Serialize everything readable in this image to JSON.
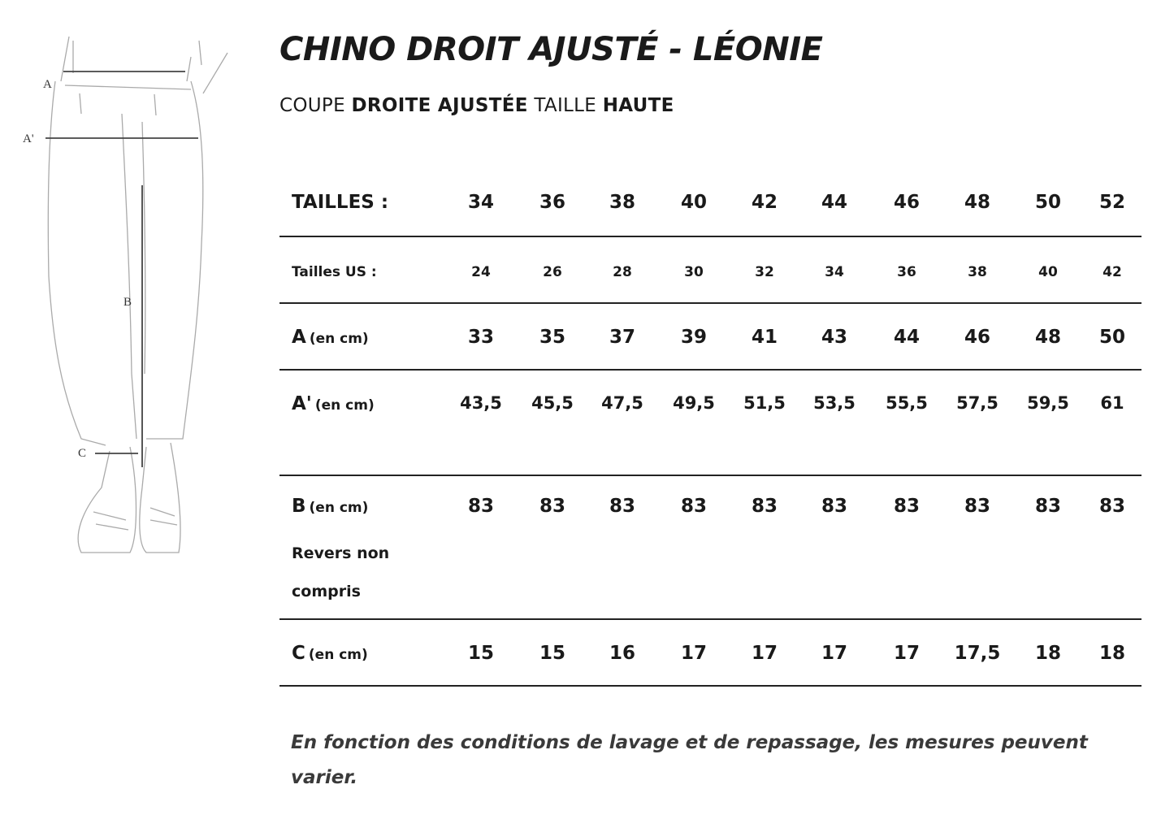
{
  "title": "CHINO DROIT AJUSTÉ - LÉONIE",
  "subtitle": {
    "p1": "COUPE ",
    "p2": "DROITE AJUSTÉE",
    "p3": " TAILLE ",
    "p4": "HAUTE"
  },
  "illustration": {
    "labels": {
      "a": "A",
      "a_prime": "A'",
      "b": "B",
      "c": "C"
    }
  },
  "table": {
    "header": {
      "label": "TAILLES :",
      "values": [
        "34",
        "36",
        "38",
        "40",
        "42",
        "44",
        "46",
        "48",
        "50",
        "52"
      ]
    },
    "us": {
      "label": "Tailles US :",
      "values": [
        "24",
        "26",
        "28",
        "30",
        "32",
        "34",
        "36",
        "38",
        "40",
        "42"
      ]
    },
    "a": {
      "label": "A",
      "unit": "(en cm)",
      "values": [
        "33",
        "35",
        "37",
        "39",
        "41",
        "43",
        "44",
        "46",
        "48",
        "50"
      ]
    },
    "a_prime": {
      "label": "A'",
      "unit": "(en cm)",
      "values": [
        "43,5",
        "45,5",
        "47,5",
        "49,5",
        "51,5",
        "53,5",
        "55,5",
        "57,5",
        "59,5",
        "61"
      ]
    },
    "b": {
      "label": "B",
      "unit": "(en cm)",
      "note": "Revers non compris",
      "values": [
        "83",
        "83",
        "83",
        "83",
        "83",
        "83",
        "83",
        "83",
        "83",
        "83"
      ]
    },
    "c": {
      "label": "C",
      "unit": "(en cm)",
      "values": [
        "15",
        "15",
        "16",
        "17",
        "17",
        "17",
        "17",
        "17,5",
        "18",
        "18"
      ]
    }
  },
  "footnote": "En fonction des conditions de lavage et de repassage, les mesures peuvent varier."
}
